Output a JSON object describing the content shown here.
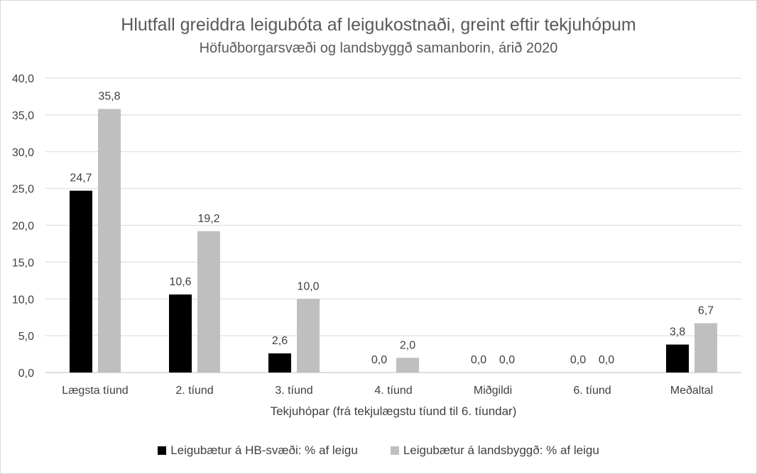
{
  "chart_data": {
    "type": "bar",
    "title": "Hlutfall greiddra leigubóta af leigukostnaði, greint eftir tekjuhópum",
    "subtitle": "Höfuðborgarsvæði og landsbyggð samanborin, árið 2020",
    "xlabel": "Tekjuhópar (frá tekjulægstu tíund til 6. tíundar)",
    "ylabel": "",
    "ylim": [
      0,
      40
    ],
    "yticks": [
      "0,0",
      "5,0",
      "10,0",
      "15,0",
      "20,0",
      "25,0",
      "30,0",
      "35,0",
      "40,0"
    ],
    "ytick_values": [
      0,
      5,
      10,
      15,
      20,
      25,
      30,
      35,
      40
    ],
    "grid": true,
    "legend_position": "bottom",
    "categories": [
      "Lægsta tíund",
      "2. tíund",
      "3. tíund",
      "4. tíund",
      "Miðgildi",
      "6. tíund",
      "Meðaltal"
    ],
    "series": [
      {
        "name": "Leigubætur á HB-svæði: % af leigu",
        "color": "#000000",
        "values": [
          24.7,
          10.6,
          2.6,
          0.0,
          0.0,
          0.0,
          3.8
        ],
        "labels": [
          "24,7",
          "10,6",
          "2,6",
          "0,0",
          "0,0",
          "0,0",
          "3,8"
        ]
      },
      {
        "name": "Leigubætur á landsbyggð: % af leigu",
        "color": "#bfbfbf",
        "values": [
          35.8,
          19.2,
          10.0,
          2.0,
          0.0,
          0.0,
          6.7
        ],
        "labels": [
          "35,8",
          "19,2",
          "10,0",
          "2,0",
          "0,0",
          "0,0",
          "6,7"
        ]
      }
    ]
  }
}
